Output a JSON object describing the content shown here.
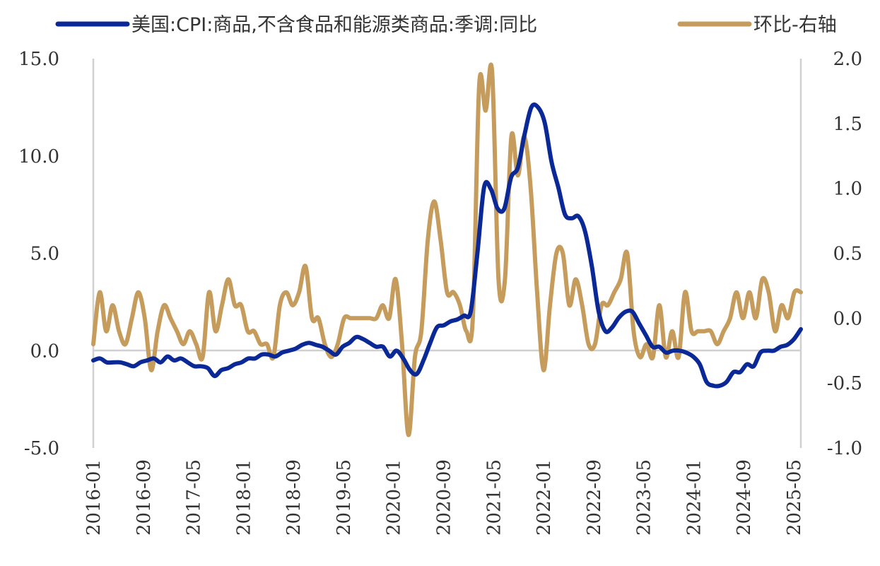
{
  "chart_data": {
    "type": "line",
    "series": [
      {
        "name": "美国:CPI:商品,不含食品和能源类商品:季调:同比",
        "axis": "left",
        "color": "#0a2896",
        "values": [
          -0.5,
          -0.4,
          -0.6,
          -0.6,
          -0.6,
          -0.7,
          -0.8,
          -0.6,
          -0.5,
          -0.4,
          -0.6,
          -0.3,
          -0.5,
          -0.4,
          -0.6,
          -0.8,
          -0.8,
          -0.9,
          -1.3,
          -1.0,
          -0.9,
          -0.7,
          -0.6,
          -0.4,
          -0.4,
          -0.2,
          -0.2,
          -0.3,
          -0.1,
          0.0,
          0.1,
          0.3,
          0.4,
          0.3,
          0.2,
          0.0,
          -0.2,
          0.2,
          0.4,
          0.7,
          0.6,
          0.4,
          0.2,
          0.2,
          -0.3,
          0.0,
          -0.4,
          -1.0,
          -1.2,
          -0.5,
          0.4,
          1.2,
          1.3,
          1.5,
          1.6,
          1.8,
          2.0,
          5.0,
          8.4,
          8.3,
          7.3,
          7.3,
          8.9,
          9.4,
          11.1,
          12.5,
          12.5,
          11.7,
          9.7,
          8.4,
          7.0,
          6.8,
          6.9,
          6.1,
          4.3,
          2.0,
          1.0,
          1.2,
          1.7,
          2.0,
          2.0,
          1.4,
          0.8,
          0.2,
          0.2,
          -0.1,
          0.0,
          0.0,
          -0.1,
          -0.3,
          -0.7,
          -1.6,
          -1.8,
          -1.8,
          -1.6,
          -1.1,
          -1.1,
          -0.7,
          -0.8,
          -0.1,
          0.0,
          0.0,
          0.2,
          0.3,
          0.6,
          1.1
        ]
      },
      {
        "name": "环比-右轴",
        "axis": "right",
        "color": "#c59c5c",
        "values": [
          -0.2,
          0.2,
          -0.1,
          0.1,
          -0.1,
          -0.2,
          0.0,
          0.2,
          0.0,
          -0.4,
          -0.1,
          0.1,
          0.0,
          -0.1,
          -0.2,
          -0.1,
          -0.2,
          -0.3,
          0.2,
          -0.1,
          0.1,
          0.3,
          0.1,
          0.1,
          -0.1,
          -0.1,
          -0.2,
          -0.2,
          -0.3,
          0.1,
          0.2,
          0.1,
          0.2,
          0.4,
          0.0,
          0.0,
          -0.2,
          -0.3,
          -0.2,
          0.0,
          0.0,
          0.0,
          0.0,
          0.0,
          0.0,
          0.1,
          0.0,
          0.3,
          -0.2,
          -0.9,
          -0.3,
          -0.1,
          0.6,
          0.9,
          0.6,
          0.2,
          0.2,
          0.1,
          -0.1,
          0.0,
          1.8,
          1.6,
          1.9,
          0.3,
          0.3,
          1.4,
          1.1,
          1.4,
          1.0,
          0.2,
          -0.4,
          0.1,
          0.5,
          0.5,
          0.1,
          0.3,
          0.1,
          -0.2,
          -0.2,
          0.1,
          0.1,
          0.2,
          0.3,
          0.5,
          -0.1,
          -0.3,
          -0.2,
          -0.3,
          0.1,
          -0.3,
          -0.1,
          -0.3,
          0.2,
          -0.1,
          -0.1,
          -0.1,
          -0.1,
          -0.2,
          -0.1,
          0.0,
          0.2,
          0.0,
          0.2,
          0.0,
          0.3,
          0.2,
          -0.1,
          0.1,
          0.0,
          0.2,
          0.2
        ]
      }
    ],
    "x_labels": [
      "2016-01",
      "2016-09",
      "2017-05",
      "2018-01",
      "2018-09",
      "2019-05",
      "2020-01",
      "2020-09",
      "2021-05",
      "2022-01",
      "2022-09",
      "2023-05",
      "2024-01",
      "2024-09",
      "2025-05"
    ],
    "y_left": {
      "ticks": [
        "15.0",
        "10.0",
        "5.0",
        "0.0",
        "-5.0"
      ],
      "min": -5,
      "max": 15
    },
    "y_right": {
      "ticks": [
        "2.0",
        "1.5",
        "1.0",
        "0.5",
        "0.0",
        "-0.5",
        "-1.0"
      ],
      "min": -1,
      "max": 2
    },
    "legend_position": "top"
  }
}
